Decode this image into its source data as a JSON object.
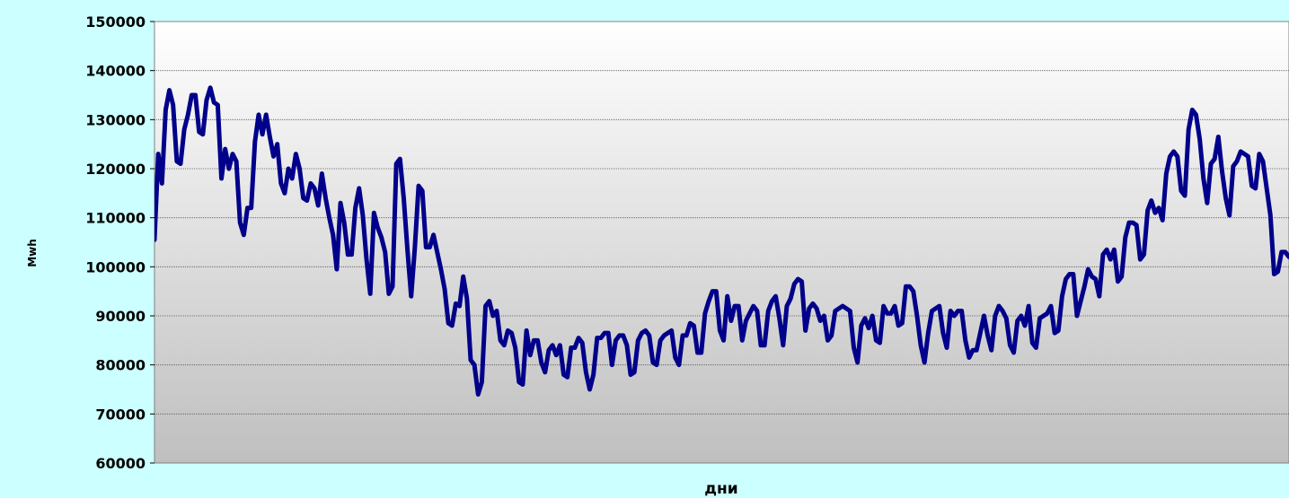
{
  "chart_data": {
    "type": "line",
    "title": "",
    "xlabel": "дни",
    "ylabel": "Mwh",
    "ylim": [
      60000,
      150000
    ],
    "yticks": [
      60000,
      70000,
      80000,
      90000,
      100000,
      110000,
      120000,
      130000,
      140000,
      150000
    ],
    "grid": true,
    "legend": "none",
    "series_color": "#00008b",
    "series": [
      {
        "values": [
          105500,
          123000,
          117000,
          132000,
          136000,
          133000,
          121500,
          121000,
          128000,
          131000,
          135000,
          135000,
          127500,
          127000,
          134000,
          136500,
          133500,
          133000,
          118000,
          124000,
          120000,
          123000,
          121500,
          109000,
          106500,
          112000,
          112000,
          125500,
          131000,
          127000,
          131000,
          126500,
          122500,
          125000,
          117000,
          115000,
          120000,
          118000,
          123000,
          120000,
          114000,
          113500,
          117000,
          116000,
          112500,
          119000,
          114000,
          110000,
          106500,
          99500,
          113000,
          109000,
          102500,
          102500,
          112000,
          116000,
          110500,
          101500,
          94500,
          111000,
          108000,
          106000,
          103000,
          94500,
          96000,
          121000,
          122000,
          114000,
          103500,
          94000,
          104000,
          116500,
          115500,
          104000,
          104000,
          106500,
          103000,
          99500,
          95500,
          88500,
          88000,
          92500,
          92000,
          98000,
          93500,
          81000,
          80000,
          74000,
          76500,
          92000,
          93000,
          90000,
          91000,
          85000,
          84000,
          87000,
          86500,
          83500,
          76500,
          76000,
          87000,
          82000,
          85000,
          85000,
          80500,
          78500,
          83000,
          84000,
          82000,
          84000,
          78000,
          77500,
          83500,
          83500,
          85500,
          84500,
          78500,
          75000,
          78000,
          85500,
          85500,
          86500,
          86500,
          80000,
          85000,
          86000,
          86000,
          84000,
          78000,
          78500,
          85000,
          86500,
          87000,
          86000,
          80500,
          80000,
          85000,
          86000,
          86500,
          87000,
          81500,
          80000,
          86000,
          86000,
          88500,
          88000,
          82500,
          82500,
          90500,
          93000,
          95000,
          95000,
          87000,
          85000,
          94000,
          89000,
          92000,
          92000,
          85000,
          89000,
          90500,
          92000,
          91000,
          84000,
          84000,
          91000,
          93000,
          94000,
          89500,
          84000,
          92000,
          93500,
          96500,
          97500,
          97000,
          87000,
          91500,
          92500,
          91500,
          89000,
          90000,
          85000,
          86000,
          91000,
          91500,
          92000,
          91500,
          91000,
          83500,
          80500,
          88000,
          89500,
          87500,
          90000,
          85000,
          84500,
          92000,
          90500,
          90500,
          92000,
          88000,
          88500,
          96000,
          96000,
          95000,
          90000,
          84000,
          80500,
          86500,
          91000,
          91500,
          92000,
          86500,
          83500,
          91000,
          90000,
          91000,
          91000,
          85000,
          81500,
          83000,
          83000,
          86500,
          90000,
          86000,
          83000,
          90000,
          92000,
          91000,
          89500,
          84000,
          82500,
          89000,
          90000,
          88000,
          92000,
          84500,
          83500,
          89500,
          90000,
          90500,
          92000,
          86500,
          87000,
          94000,
          97500,
          98500,
          98500,
          90000,
          93000,
          96000,
          99500,
          98000,
          97500,
          94000,
          102500,
          103500,
          101500,
          103500,
          97000,
          98000,
          106000,
          109000,
          109000,
          108500,
          101500,
          102500,
          111500,
          113500,
          111000,
          112000,
          109500,
          119000,
          122500,
          123500,
          122500,
          115500,
          114500,
          128000,
          132000,
          131000,
          126000,
          118000,
          113000,
          121000,
          122000,
          126500,
          119500,
          114000,
          110500,
          120500,
          121500,
          123500,
          123000,
          122500,
          116500,
          116000,
          123000,
          121500,
          116000,
          110500,
          98500,
          99000,
          103000,
          103000,
          102000
        ]
      }
    ]
  }
}
